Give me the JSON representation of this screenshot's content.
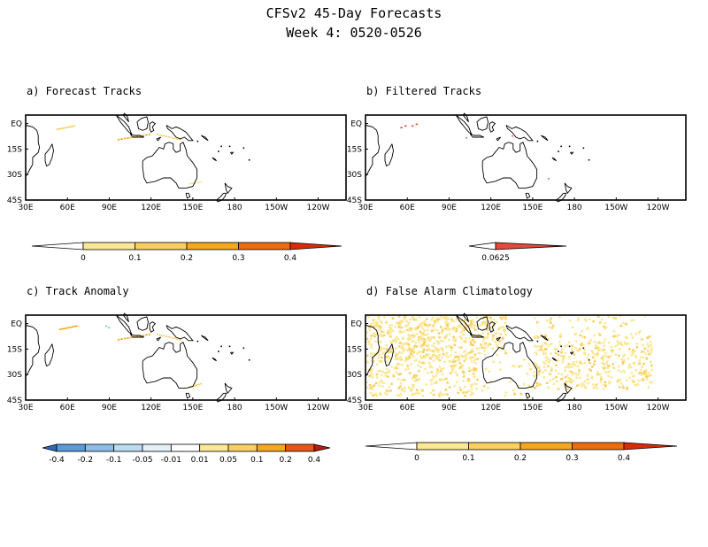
{
  "header": {
    "line1": "CFSv2 45-Day Forecasts",
    "line2": "Week 4: 0520-0526"
  },
  "map_axes": {
    "lon_labels": [
      "30E",
      "60E",
      "90E",
      "120E",
      "150E",
      "180",
      "150W",
      "120W"
    ],
    "lat_labels": [
      "EQ",
      "15S",
      "30S",
      "45S"
    ],
    "lon_range": [
      30,
      260
    ],
    "lat_range": [
      -45,
      5
    ]
  },
  "panels": [
    {
      "id": "a",
      "title": "a) Forecast Tracks",
      "colorbar": {
        "labels": [
          "0",
          "0.1",
          "0.2",
          "0.3",
          "0.4"
        ],
        "colors": [
          "#fbe895",
          "#f9cf61",
          "#f4a71f",
          "#ec6d0f",
          "#d92b07"
        ]
      }
    },
    {
      "id": "b",
      "title": "b) Filtered Tracks",
      "colorbar": {
        "labels": [
          "0.0625"
        ],
        "colors": [
          "#e34a3b"
        ]
      }
    },
    {
      "id": "c",
      "title": "c) Track Anomaly",
      "colorbar": {
        "labels": [
          "-0.4",
          "-0.2",
          "-0.1",
          "-0.05",
          "-0.01",
          "0.01",
          "0.05",
          "0.1",
          "0.2",
          "0.4"
        ],
        "colors": [
          "#2c6bbf",
          "#5a9ad8",
          "#8cbde8",
          "#bcdcf3",
          "#e3f1fb",
          "#ffffff",
          "#fbe895",
          "#f9cf61",
          "#f4a71f",
          "#e6561b",
          "#b81c0c"
        ]
      }
    },
    {
      "id": "d",
      "title": "d) False Alarm Climatology",
      "colorbar": {
        "labels": [
          "0",
          "0.1",
          "0.2",
          "0.3",
          "0.4"
        ],
        "colors": [
          "#fbe895",
          "#f9cf61",
          "#f4a71f",
          "#ec6d0f",
          "#d92b07"
        ]
      }
    }
  ],
  "colors": {
    "frame": "#000000",
    "background": "#ffffff"
  }
}
